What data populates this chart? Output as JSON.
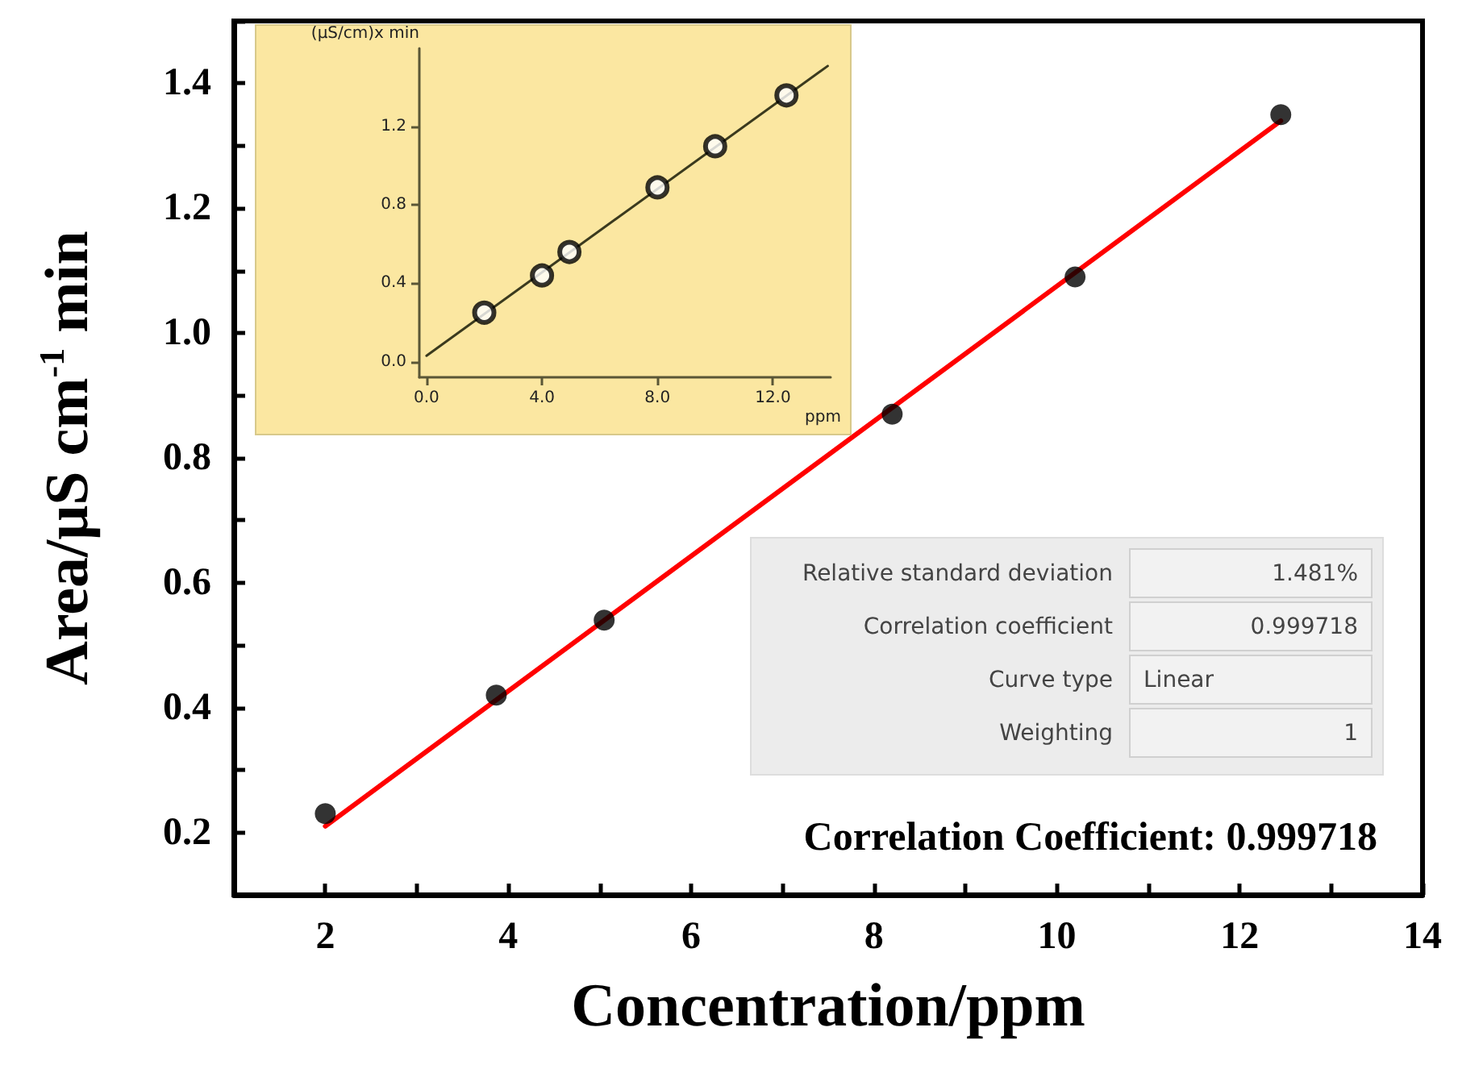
{
  "chart_data": [
    {
      "type": "scatter",
      "xlabel": "Concentration/ppm",
      "ylabel": "Area/μS cm$^{-1}$ min",
      "xlim": [
        1,
        14
      ],
      "xticks": [
        {
          "value": 1,
          "label": null
        },
        2,
        {
          "value": 3,
          "label": null
        },
        4,
        {
          "value": 5,
          "label": null
        },
        6,
        {
          "value": 7,
          "label": null
        },
        8,
        {
          "value": 9,
          "label": null
        },
        10,
        {
          "value": 11,
          "label": null
        },
        12,
        {
          "value": 13,
          "label": null
        },
        14
      ],
      "ylim": [
        0.1,
        1.5
      ],
      "yticks": [
        {
          "value": 0.1,
          "label": null
        },
        0.2,
        {
          "value": 0.3,
          "label": null
        },
        0.4,
        {
          "value": 0.5,
          "label": null
        },
        0.6,
        {
          "value": 0.7,
          "label": null
        },
        0.8,
        {
          "value": 0.9,
          "label": null
        },
        {
          "value": 1,
          "label": "1.0"
        },
        {
          "value": 1.1,
          "label": null
        },
        1.2,
        {
          "value": 1.3,
          "label": null
        },
        1.4,
        {
          "value": 1.5,
          "label": null
        }
      ],
      "grid": false,
      "series": [
        {
          "type": "scatter",
          "color": "#000000",
          "marker": "circle",
          "x": [
            2,
            3.87,
            5.05,
            8.2,
            10.2,
            12.45
          ],
          "values": [
            0.23,
            0.42,
            0.54,
            0.87,
            1.09,
            1.35
          ]
        },
        {
          "type": "line",
          "color": "#ff0000",
          "marker": "none",
          "line_style": "solid",
          "x": [
            2,
            12.45
          ],
          "values": [
            0.21,
            1.34
          ]
        }
      ],
      "annotations": [
        "Relative standard deviation",
        "1.481%",
        "Correlation coefficient",
        "0.999718",
        "Curve type",
        "Linear",
        "Weighting",
        "1",
        "Correlation Coefficient: 0.999718"
      ]
    },
    {
      "type": "scatter",
      "xlabel": "ppm",
      "ylabel": "(μS/cm)x min",
      "xlim": [
        -0.25,
        14
      ],
      "xticks": [
        {
          "value": 0,
          "label": "0.0"
        },
        {
          "value": 4,
          "label": "4.0"
        },
        {
          "value": 8,
          "label": "8.0"
        },
        {
          "value": 12,
          "label": "12.0"
        }
      ],
      "ylim": [
        -0.08,
        1.6
      ],
      "yticks": [
        {
          "value": 0,
          "label": "0.0"
        },
        0.4,
        0.8,
        1.2
      ],
      "grid": false,
      "series": [
        {
          "type": "scatter",
          "color": "#000000",
          "marker": "circle",
          "x": [
            2,
            4,
            4.95,
            8,
            10,
            12.47
          ],
          "values": [
            0.25,
            0.44,
            0.56,
            0.89,
            1.1,
            1.36
          ]
        },
        {
          "type": "line",
          "color": "#3b3a1e",
          "marker": "none",
          "line_style": "solid",
          "x": [
            0,
            13.9
          ],
          "values": [
            0.03,
            1.51
          ]
        }
      ]
    }
  ]
}
